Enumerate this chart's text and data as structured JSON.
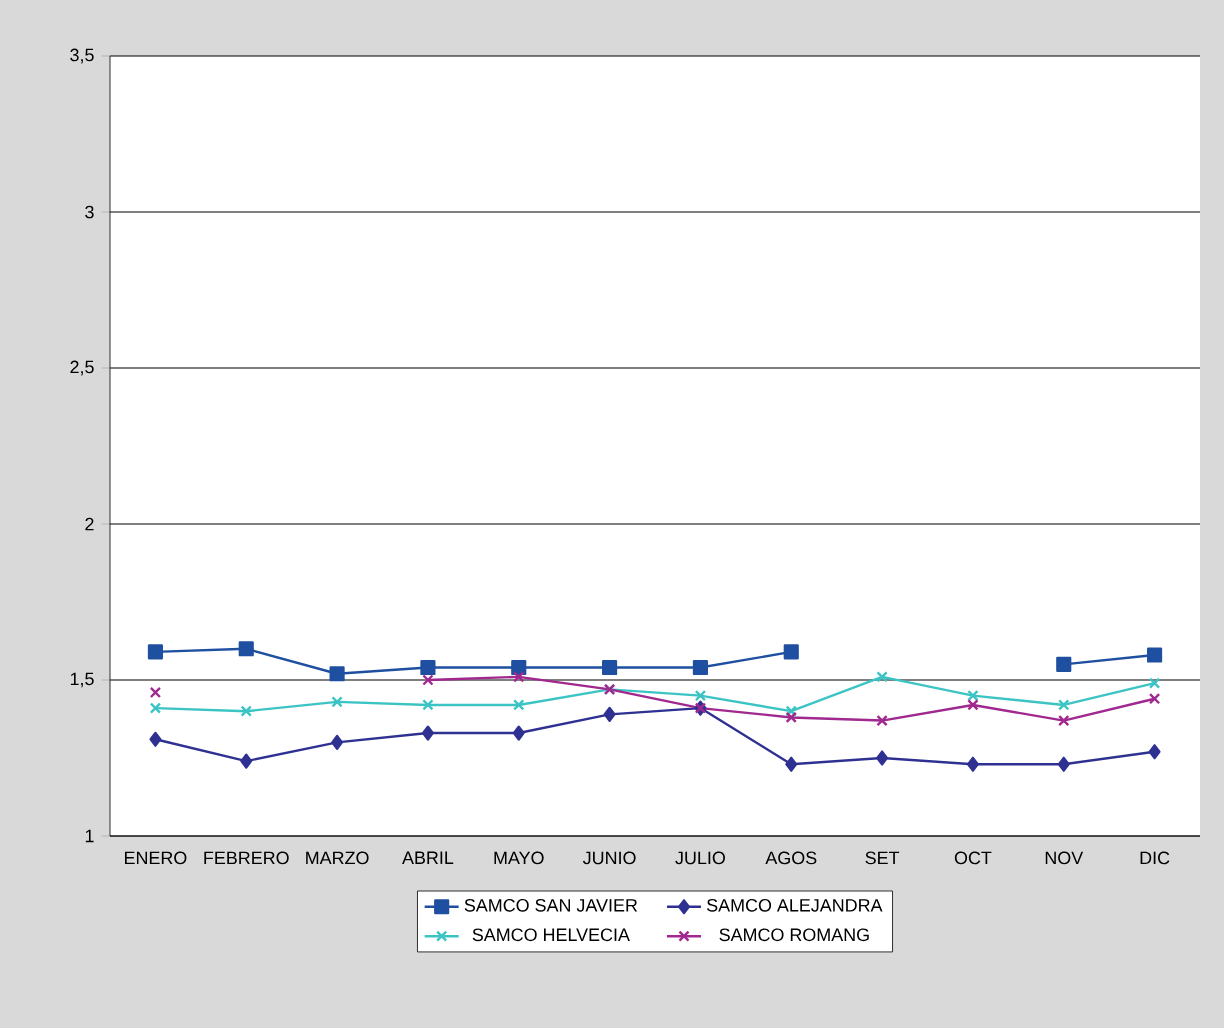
{
  "chart_data": {
    "type": "line",
    "categories": [
      "ENERO",
      "FEBRERO",
      "MARZO",
      "ABRIL",
      "MAYO",
      "JUNIO",
      "JULIO",
      "AGOS",
      "SET",
      "OCT",
      "NOV",
      "DIC"
    ],
    "series": [
      {
        "name": "SAMCO SAN JAVIER",
        "color": "#1f4fa0",
        "marker": "square",
        "values": [
          1.59,
          1.6,
          1.52,
          1.54,
          1.54,
          1.54,
          1.54,
          1.59,
          null,
          null,
          1.55,
          1.58
        ]
      },
      {
        "name": "SAMCO ALEJANDRA",
        "color": "#2e3192",
        "marker": "diamond",
        "values": [
          1.31,
          1.24,
          1.3,
          1.33,
          1.33,
          1.39,
          1.41,
          1.23,
          1.25,
          1.23,
          1.23,
          1.27
        ]
      },
      {
        "name": "SAMCO HELVECIA",
        "color": "#3cc4c4",
        "marker": "cross",
        "values": [
          1.41,
          1.4,
          1.43,
          1.42,
          1.42,
          1.47,
          1.45,
          1.4,
          1.51,
          1.45,
          1.42,
          1.49
        ]
      },
      {
        "name": "SAMCO ROMANG",
        "color": "#a0288f",
        "marker": "cross",
        "values": [
          1.46,
          null,
          null,
          1.5,
          1.51,
          1.47,
          1.41,
          1.38,
          1.37,
          1.42,
          1.37,
          1.44
        ]
      }
    ],
    "ylim": [
      1,
      3.5
    ],
    "yticks": [
      1,
      {
        "value": 1.5,
        "label": "1,5"
      },
      2,
      {
        "value": 2.5,
        "label": "2,5"
      },
      3,
      {
        "value": 3.5,
        "label": "3,5"
      }
    ],
    "grid": "y",
    "legend": "bottom",
    "line_style": "solid"
  }
}
